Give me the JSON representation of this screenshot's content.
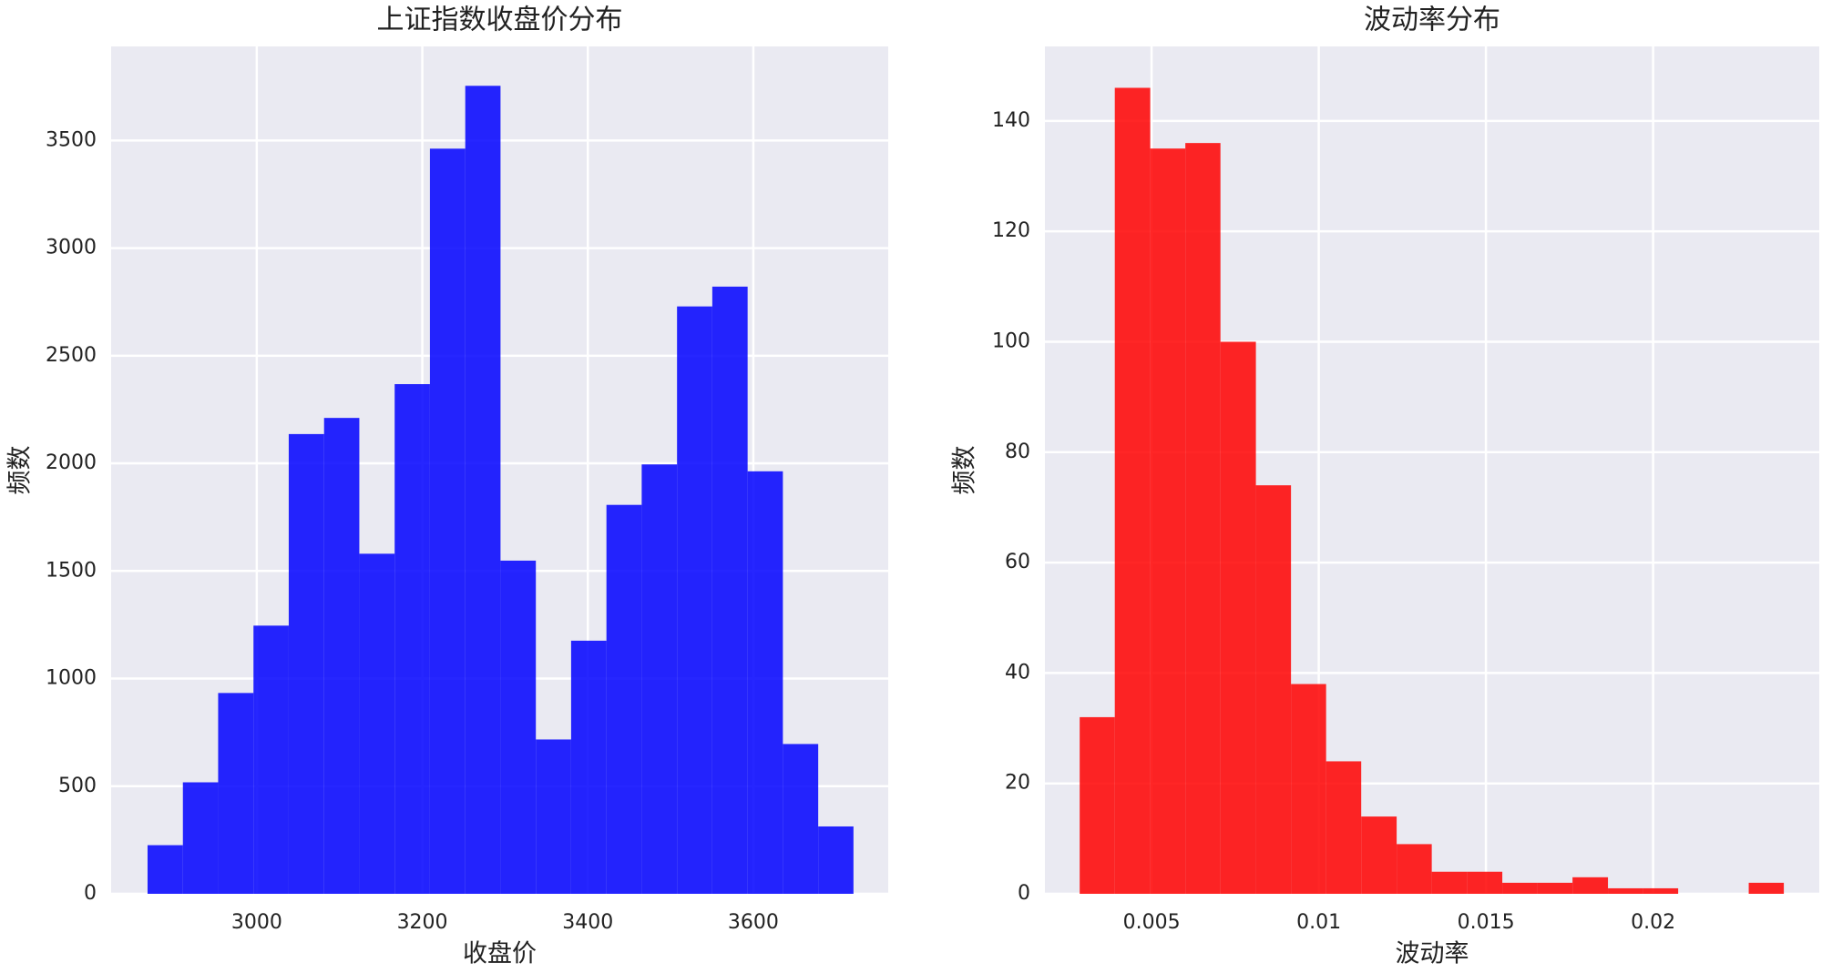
{
  "chart_data": [
    {
      "type": "histogram",
      "title": "上证指数收盘价分布",
      "x_label": "收盘价",
      "y_label": "频数",
      "bins": [
        2868.0,
        2910.7,
        2953.3,
        2996.0,
        3038.6,
        3081.3,
        3123.9,
        3166.6,
        3209.2,
        3251.9,
        3294.5,
        3337.2,
        3379.8,
        3422.5,
        3465.1,
        3507.8,
        3550.4,
        3593.1,
        3635.7,
        3678.4,
        3721.0
      ],
      "counts": [
        226,
        518,
        933,
        1246,
        2136,
        2211,
        1580,
        2368,
        3462,
        3754,
        1548,
        717,
        1176,
        1807,
        1995,
        2729,
        2821,
        1963,
        696,
        313
      ],
      "color": "#0000ff",
      "alpha": 0.85,
      "xlim": [
        2824,
        3763
      ],
      "ylim": [
        0,
        3937
      ],
      "xticks": [
        3000,
        3200,
        3400,
        3600
      ],
      "yticks": [
        0,
        500,
        1000,
        1500,
        2000,
        2500,
        3000,
        3500
      ],
      "grid": true
    },
    {
      "type": "histogram",
      "title": "波动率分布",
      "x_label": "波动率",
      "y_label": "频数",
      "bins": [
        0.00285,
        0.0039,
        0.00496,
        0.00601,
        0.00706,
        0.00812,
        0.00917,
        0.01022,
        0.01127,
        0.01233,
        0.01338,
        0.01443,
        0.01549,
        0.01654,
        0.01759,
        0.01865,
        0.0197,
        0.02075,
        0.0218,
        0.02286,
        0.02391
      ],
      "counts": [
        32,
        146,
        135,
        136,
        100,
        74,
        38,
        24,
        14,
        9,
        4,
        4,
        2,
        2,
        3,
        1,
        1,
        0,
        0,
        2
      ],
      "color": "#ff0000",
      "alpha": 0.85,
      "xlim": [
        0.00181,
        0.02497
      ],
      "ylim": [
        0,
        153.5
      ],
      "xticks": [
        0.005,
        0.01,
        0.015,
        0.02
      ],
      "yticks": [
        0,
        20,
        40,
        60,
        80,
        100,
        120,
        140
      ],
      "grid": true
    }
  ]
}
